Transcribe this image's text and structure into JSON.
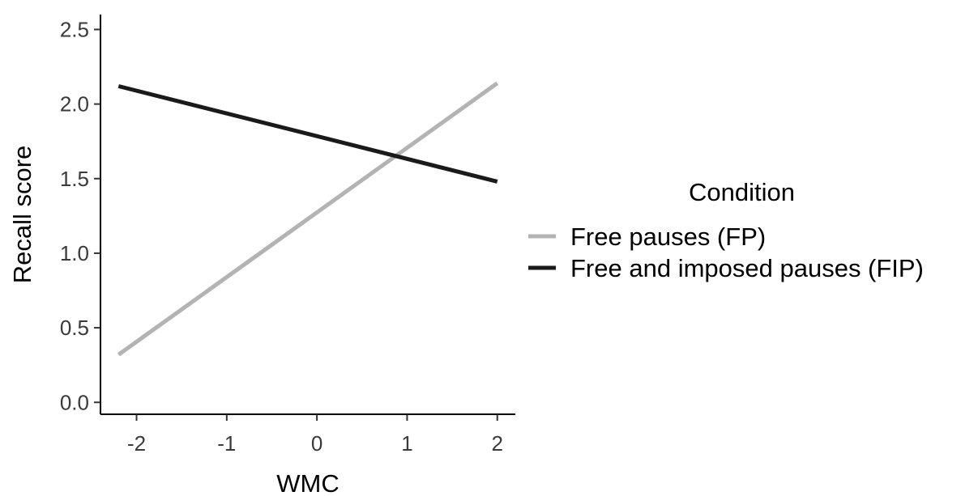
{
  "chart_data": {
    "type": "line",
    "xlabel": "WMC",
    "ylabel": "Recall score",
    "xlim": [
      -2.4,
      2.2
    ],
    "ylim": [
      -0.08,
      2.6
    ],
    "x_ticks": [
      -2,
      -1,
      0,
      1,
      2
    ],
    "x_tick_labels": [
      "-2",
      "-1",
      "0",
      "1",
      "2"
    ],
    "y_ticks": [
      0.0,
      0.5,
      1.0,
      1.5,
      2.0,
      2.5
    ],
    "y_tick_labels": [
      "0.0",
      "0.5",
      "1.0",
      "1.5",
      "2.0",
      "2.5"
    ],
    "grid": false,
    "legend": {
      "title": "Condition",
      "position": "right"
    },
    "series": [
      {
        "name": "Free pauses (FP)",
        "color": "#b3b3b3",
        "x": [
          -2.2,
          2.0
        ],
        "y": [
          0.32,
          2.14
        ]
      },
      {
        "name": "Free and imposed pauses (FIP)",
        "color": "#1a1a1a",
        "x": [
          -2.2,
          2.0
        ],
        "y": [
          2.12,
          1.48
        ]
      }
    ]
  }
}
